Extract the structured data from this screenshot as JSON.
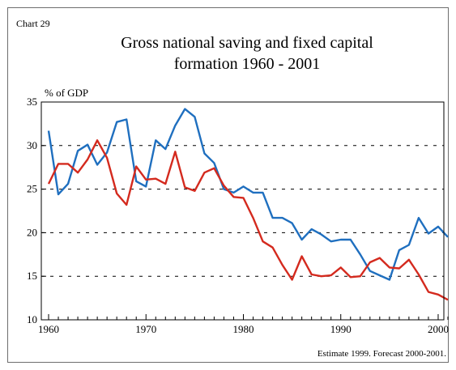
{
  "chart_label": "Chart 29",
  "chart_data": {
    "type": "line",
    "title_lines": [
      "Gross national saving and fixed capital",
      "formation 1960 - 2001"
    ],
    "xlabel": "",
    "ylabel": "% of GDP",
    "xlim": [
      1960,
      2001
    ],
    "ylim": [
      10,
      35
    ],
    "x_ticks": [
      1960,
      1970,
      1980,
      1990,
      2000
    ],
    "y_ticks": [
      10,
      15,
      20,
      25,
      30,
      35
    ],
    "grid": "horizontal dashed",
    "legend": "none",
    "x": [
      1960,
      1961,
      1962,
      1963,
      1964,
      1965,
      1966,
      1967,
      1968,
      1969,
      1970,
      1971,
      1972,
      1973,
      1974,
      1975,
      1976,
      1977,
      1978,
      1979,
      1980,
      1981,
      1982,
      1983,
      1984,
      1985,
      1986,
      1987,
      1988,
      1989,
      1990,
      1991,
      1992,
      1993,
      1994,
      1995,
      1996,
      1997,
      1998,
      1999,
      2000,
      2001
    ],
    "series": [
      {
        "color": "#1f6fbf",
        "values": [
          31.7,
          24.4,
          25.6,
          29.4,
          30.1,
          27.8,
          29.2,
          32.7,
          33.0,
          25.9,
          25.3,
          30.6,
          29.6,
          32.3,
          34.2,
          33.3,
          29.1,
          28.0,
          25.0,
          24.6,
          25.3,
          24.6,
          24.6,
          21.7,
          21.7,
          21.1,
          19.2,
          20.4,
          19.8,
          19.0,
          19.2,
          19.2,
          17.5,
          15.6,
          15.1,
          14.6,
          18.0,
          18.6,
          21.7,
          19.9,
          20.7,
          19.5
        ]
      },
      {
        "color": "#d42a1e",
        "values": [
          25.6,
          27.9,
          27.9,
          26.9,
          28.4,
          30.6,
          28.6,
          24.5,
          23.2,
          27.6,
          26.1,
          26.2,
          25.6,
          29.3,
          25.2,
          24.8,
          26.9,
          27.4,
          25.4,
          24.1,
          24.0,
          21.7,
          19.0,
          18.3,
          16.3,
          14.6,
          17.3,
          15.2,
          15.0,
          15.1,
          16.0,
          14.9,
          15.0,
          16.6,
          17.1,
          16.0,
          15.9,
          16.9,
          15.2,
          13.2,
          12.9,
          12.3
        ]
      }
    ]
  },
  "footnote": "Estimate 1999. Forecast 2000-2001."
}
